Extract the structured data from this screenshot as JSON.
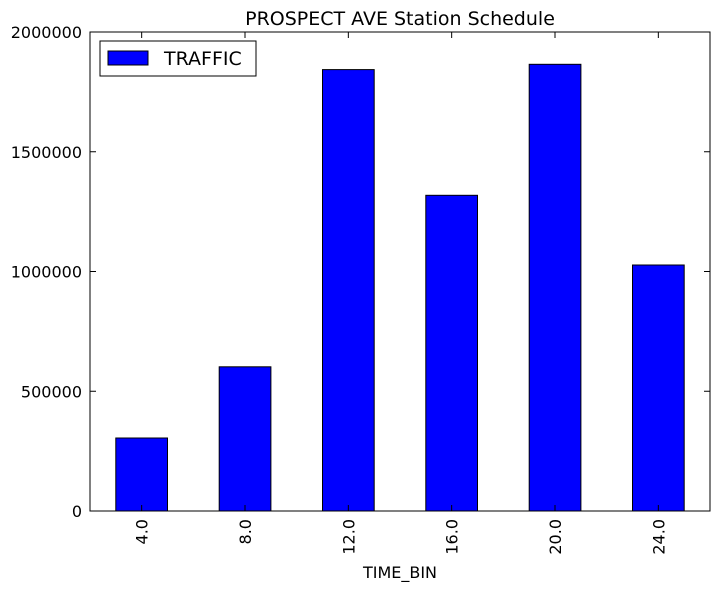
{
  "chart_data": {
    "type": "bar",
    "title": "PROSPECT AVE Station Schedule",
    "xlabel": "TIME_BIN",
    "ylabel": "",
    "categories": [
      "4.0",
      "8.0",
      "12.0",
      "16.0",
      "20.0",
      "24.0"
    ],
    "series": [
      {
        "name": "TRAFFIC",
        "values": [
          305000,
          602000,
          1843000,
          1318000,
          1865000,
          1027000
        ]
      }
    ],
    "ylim": [
      0,
      2000000
    ],
    "yticks": [
      "0",
      "500000",
      "1000000",
      "1500000",
      "2000000"
    ],
    "ytick_values": [
      0,
      500000,
      1000000,
      1500000,
      2000000
    ],
    "grid": false,
    "legend": "top-left",
    "colors": {
      "bar": "#0000ff",
      "edge": "#000000"
    }
  }
}
